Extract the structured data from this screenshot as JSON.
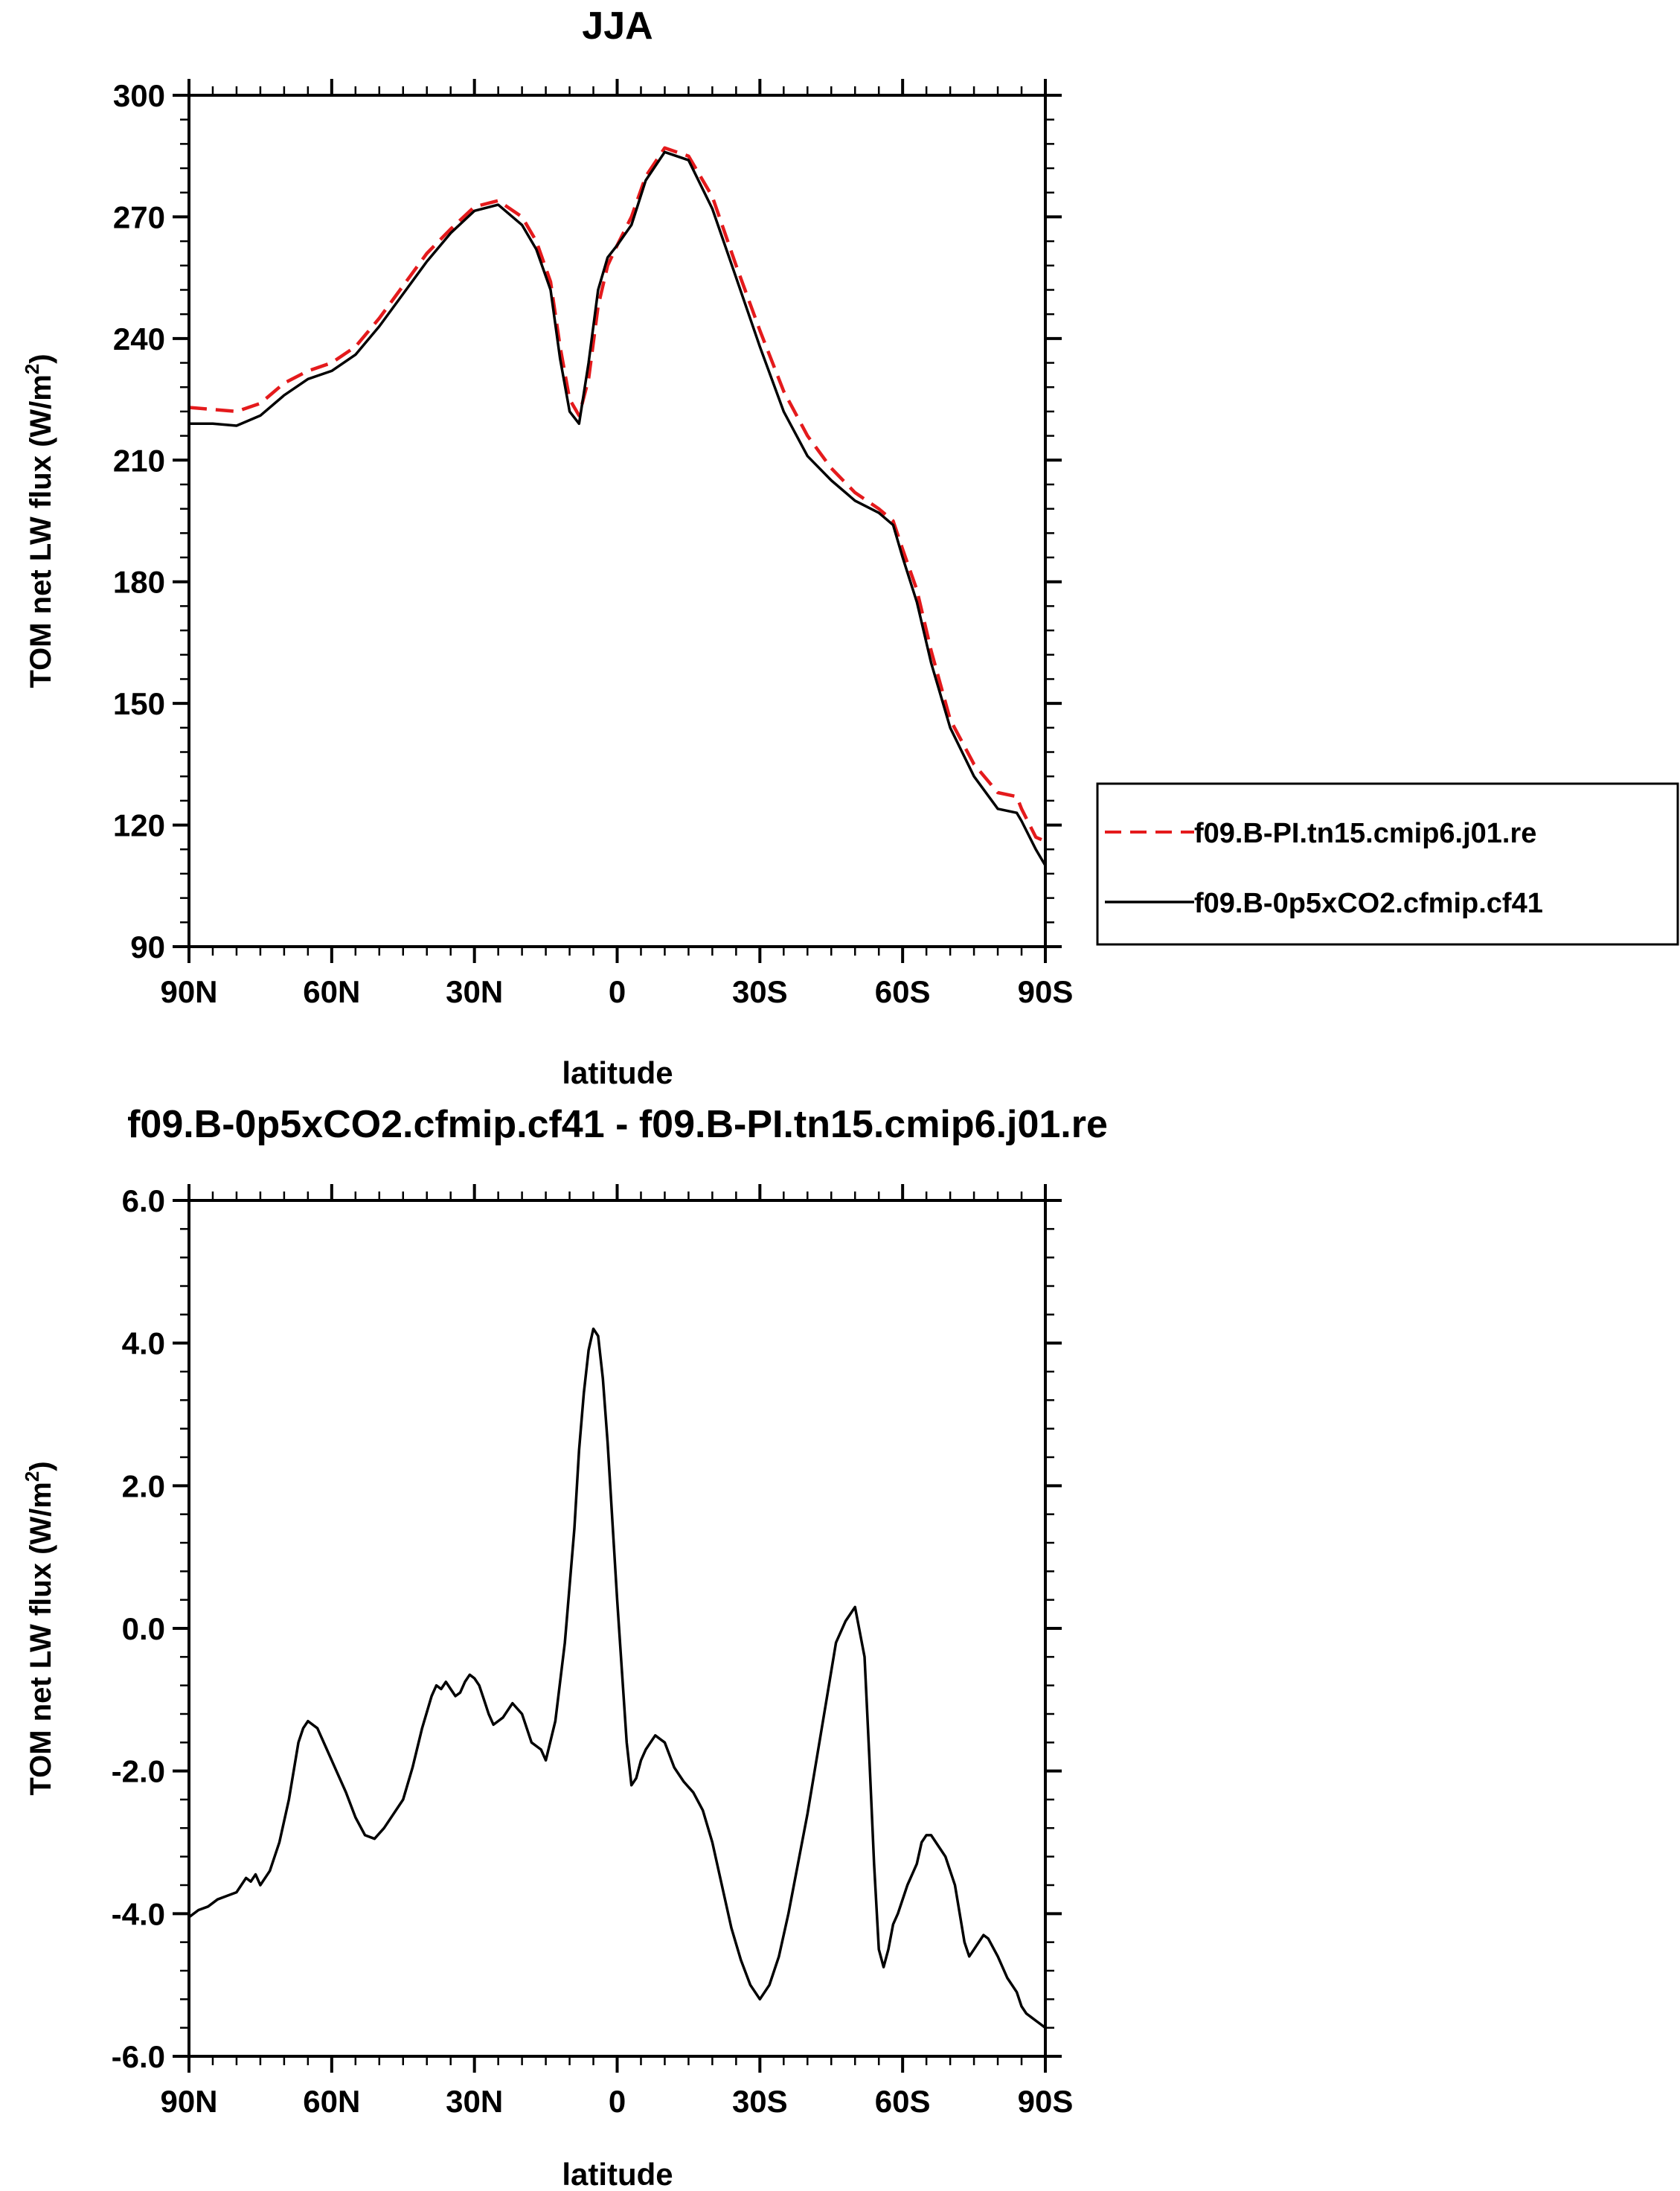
{
  "chart_data": [
    {
      "type": "line",
      "title": "JJA",
      "xlabel": "latitude",
      "ylabel": "TOM net LW flux (W/m",
      "ylabel_sup": "2",
      "ylabel_close": ")",
      "xlim": [
        90,
        -90
      ],
      "ylim": [
        90,
        300
      ],
      "x_ticks": [
        90,
        60,
        30,
        0,
        -30,
        -60,
        -90
      ],
      "x_tick_labels": [
        "90N",
        "60N",
        "30N",
        "0",
        "30S",
        "60S",
        "90S"
      ],
      "y_ticks": [
        90,
        120,
        150,
        180,
        210,
        240,
        270,
        300
      ],
      "y_tick_labels": [
        "90",
        "120",
        "150",
        "180",
        "210",
        "240",
        "270",
        "300"
      ],
      "legend": {
        "position": "right",
        "entries": [
          "f09.B-PI.tn15.cmip6.j01.re",
          "f09.B-0p5xCO2.cfmip.cf41"
        ]
      },
      "series": [
        {
          "name": "f09.B-PI.tn15.cmip6.j01.re",
          "color": "#e41a1c",
          "dash": "dashed",
          "x": [
            90,
            85,
            80,
            75,
            70,
            65,
            60,
            55,
            50,
            45,
            40,
            35,
            30,
            25,
            20,
            17,
            14,
            12,
            10,
            8,
            6,
            4,
            2,
            0,
            -3,
            -6,
            -10,
            -15,
            -20,
            -25,
            -30,
            -35,
            -40,
            -45,
            -50,
            -55,
            -58,
            -60,
            -63,
            -66,
            -70,
            -75,
            -80,
            -84,
            -85,
            -88,
            -90
          ],
          "values": [
            223,
            222.5,
            222,
            224,
            229,
            232,
            234,
            238,
            245,
            253,
            261,
            267,
            272.5,
            274,
            270,
            264,
            254,
            238,
            225,
            221,
            230,
            248,
            258,
            263,
            270,
            280,
            287,
            285,
            275,
            258,
            242,
            227,
            216,
            208,
            202,
            198,
            195,
            188,
            178,
            163,
            146,
            135,
            128,
            127,
            124,
            117,
            116
          ]
        },
        {
          "name": "f09.B-0p5xCO2.cfmip.cf41",
          "color": "#000000",
          "dash": "solid",
          "x": [
            90,
            85,
            80,
            75,
            70,
            65,
            60,
            55,
            50,
            45,
            40,
            35,
            30,
            25,
            20,
            17,
            14,
            12,
            10,
            8,
            6,
            4,
            2,
            0,
            -3,
            -6,
            -10,
            -15,
            -20,
            -25,
            -30,
            -35,
            -40,
            -45,
            -50,
            -55,
            -58,
            -60,
            -63,
            -66,
            -70,
            -75,
            -80,
            -84,
            -85,
            -88,
            -90
          ],
          "values": [
            219,
            219,
            218.5,
            221,
            226,
            230,
            232,
            236,
            243,
            251,
            259,
            266,
            271.5,
            273,
            268,
            262,
            252,
            235,
            222,
            219,
            234,
            252,
            260,
            263,
            268,
            279,
            286,
            284,
            272,
            255,
            238,
            222,
            211,
            205,
            200,
            197,
            194,
            186,
            175,
            160,
            144,
            132,
            124,
            123,
            121,
            114,
            110
          ]
        }
      ]
    },
    {
      "type": "line",
      "title": "f09.B-0p5xCO2.cfmip.cf41 - f09.B-PI.tn15.cmip6.j01.re",
      "xlabel": "latitude",
      "ylabel": "TOM net LW flux (W/m",
      "ylabel_sup": "2",
      "ylabel_close": ")",
      "xlim": [
        90,
        -90
      ],
      "ylim": [
        -6,
        6
      ],
      "x_ticks": [
        90,
        60,
        30,
        0,
        -30,
        -60,
        -90
      ],
      "x_tick_labels": [
        "90N",
        "60N",
        "30N",
        "0",
        "30S",
        "60S",
        "90S"
      ],
      "y_ticks": [
        -6,
        -4,
        -2,
        0,
        2,
        4,
        6
      ],
      "y_tick_labels": [
        "-6.0",
        "-4.0",
        "-2.0",
        "0.0",
        "2.0",
        "4.0",
        "6.0"
      ],
      "series": [
        {
          "name": "f09.B-0p5xCO2.cfmip.cf41 - f09.B-PI.tn15.cmip6.j01.re",
          "color": "#000000",
          "dash": "solid",
          "x": [
            90,
            88,
            86,
            84,
            82,
            80,
            79,
            78,
            77,
            76,
            75,
            73,
            71,
            69,
            67,
            66,
            65,
            63,
            61,
            59,
            57,
            55,
            53,
            51,
            49,
            47,
            45,
            43,
            41,
            39,
            38,
            37,
            36,
            35,
            34,
            33,
            32,
            31,
            30,
            29,
            28,
            27,
            26,
            25,
            24,
            23,
            22,
            20,
            18,
            17,
            16,
            15,
            13,
            11,
            10,
            9,
            8,
            7,
            6,
            5,
            4,
            3,
            2,
            1,
            0,
            -1,
            -2,
            -3,
            -4,
            -5,
            -6,
            -7,
            -8,
            -10,
            -12,
            -13,
            -14,
            -16,
            -18,
            -20,
            -22,
            -24,
            -26,
            -28,
            -30,
            -32,
            -34,
            -36,
            -38,
            -40,
            -42,
            -44,
            -46,
            -48,
            -50,
            -52,
            -53,
            -54,
            -55,
            -56,
            -57,
            -58,
            -59,
            -60,
            -61,
            -62,
            -63,
            -64,
            -65,
            -66,
            -67,
            -69,
            -71,
            -72,
            -73,
            -74,
            -75,
            -76,
            -77,
            -78,
            -80,
            -82,
            -84,
            -85,
            -86,
            -87,
            -88,
            -89,
            -90
          ],
          "values": [
            -4.05,
            -3.95,
            -3.9,
            -3.8,
            -3.75,
            -3.7,
            -3.6,
            -3.5,
            -3.55,
            -3.45,
            -3.6,
            -3.4,
            -3.0,
            -2.4,
            -1.6,
            -1.4,
            -1.3,
            -1.4,
            -1.7,
            -2.0,
            -2.3,
            -2.65,
            -2.9,
            -2.95,
            -2.8,
            -2.6,
            -2.4,
            -1.95,
            -1.4,
            -0.95,
            -0.8,
            -0.85,
            -0.75,
            -0.85,
            -0.95,
            -0.9,
            -0.75,
            -0.65,
            -0.7,
            -0.8,
            -1.0,
            -1.2,
            -1.35,
            -1.3,
            -1.25,
            -1.15,
            -1.05,
            -1.2,
            -1.6,
            -1.65,
            -1.7,
            -1.85,
            -1.3,
            -0.2,
            0.6,
            1.4,
            2.5,
            3.3,
            3.9,
            4.2,
            4.1,
            3.5,
            2.6,
            1.5,
            0.4,
            -0.6,
            -1.6,
            -2.2,
            -2.1,
            -1.85,
            -1.7,
            -1.6,
            -1.5,
            -1.6,
            -1.95,
            -2.05,
            -2.15,
            -2.3,
            -2.55,
            -3.0,
            -3.6,
            -4.2,
            -4.65,
            -5.0,
            -5.2,
            -5.0,
            -4.6,
            -4.0,
            -3.3,
            -2.6,
            -1.8,
            -1.0,
            -0.2,
            0.1,
            0.3,
            -0.4,
            -1.8,
            -3.3,
            -4.5,
            -4.75,
            -4.5,
            -4.15,
            -4.0,
            -3.8,
            -3.6,
            -3.45,
            -3.3,
            -3.0,
            -2.9,
            -2.9,
            -3.0,
            -3.2,
            -3.6,
            -4.0,
            -4.4,
            -4.6,
            -4.5,
            -4.4,
            -4.3,
            -4.35,
            -4.6,
            -4.9,
            -5.1,
            -5.3,
            -5.4,
            -5.45,
            -5.5,
            -5.55,
            -5.6
          ]
        }
      ]
    }
  ]
}
